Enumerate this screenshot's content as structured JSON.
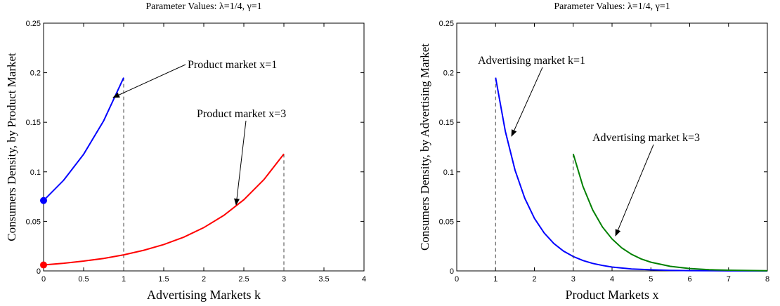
{
  "chart_data": [
    {
      "type": "line",
      "title": "Parameter Values: λ=1/4, γ=1",
      "x_label": "Advertising Markets k",
      "y_label": "Consumers Density, by Product Market",
      "xlim": [
        0,
        4
      ],
      "ylim": [
        0,
        0.25
      ],
      "xticks": [
        0,
        0.5,
        1,
        1.5,
        2,
        2.5,
        3,
        3.5,
        4
      ],
      "yticks": [
        0,
        0.05,
        0.1,
        0.15,
        0.2,
        0.25
      ],
      "annotations": [
        "Product market x=1",
        "Product market x=3"
      ],
      "series": [
        {
          "name": "Product market x=1",
          "color": "#0000ff",
          "x": [
            0,
            0.25,
            0.5,
            0.75,
            1
          ],
          "values": [
            0.071,
            0.0914,
            0.1177,
            0.1514,
            0.195
          ]
        },
        {
          "name": "Product market x=3",
          "color": "#ff0000",
          "x": [
            0,
            0.25,
            0.5,
            0.75,
            1,
            1.25,
            1.5,
            1.75,
            2,
            2.25,
            2.5,
            2.75,
            3
          ],
          "values": [
            0.006,
            0.0077,
            0.0099,
            0.0126,
            0.0162,
            0.0208,
            0.0266,
            0.0341,
            0.0437,
            0.056,
            0.0718,
            0.0921,
            0.118
          ]
        }
      ]
    },
    {
      "type": "line",
      "title": "Parameter Values: λ=1/4, γ=1",
      "x_label": "Product Markets x",
      "y_label": "Consumers Density, by Advertising Market",
      "xlim": [
        0,
        8
      ],
      "ylim": [
        0,
        0.25
      ],
      "xticks": [
        0,
        1,
        2,
        3,
        4,
        5,
        6,
        7,
        8
      ],
      "yticks": [
        0,
        0.05,
        0.1,
        0.15,
        0.2,
        0.25
      ],
      "annotations": [
        "Advertising market k=1",
        "Advertising market k=3"
      ],
      "series": [
        {
          "name": "Advertising market k=1",
          "color": "#0000ff",
          "x": [
            1,
            1.25,
            1.5,
            1.75,
            2,
            2.25,
            2.5,
            2.75,
            3,
            3.25,
            3.5,
            3.75,
            4,
            4.5,
            5,
            5.5,
            6,
            7,
            8
          ],
          "values": [
            0.195,
            0.1409,
            0.1018,
            0.0735,
            0.0531,
            0.0384,
            0.0277,
            0.02,
            0.0145,
            0.0105,
            0.0076,
            0.0055,
            0.0039,
            0.002,
            0.0011,
            0.0006,
            0.0003,
            0.0001,
            0
          ]
        },
        {
          "name": "Advertising market k=3",
          "color": "#008000",
          "x": [
            3,
            3.25,
            3.5,
            3.75,
            4,
            4.25,
            4.5,
            4.75,
            5,
            5.5,
            6,
            6.5,
            7,
            8
          ],
          "values": [
            0.118,
            0.0853,
            0.0616,
            0.0445,
            0.0322,
            0.0232,
            0.0168,
            0.0121,
            0.0088,
            0.0046,
            0.0024,
            0.0012,
            0.0007,
            0.0002
          ]
        }
      ]
    }
  ]
}
